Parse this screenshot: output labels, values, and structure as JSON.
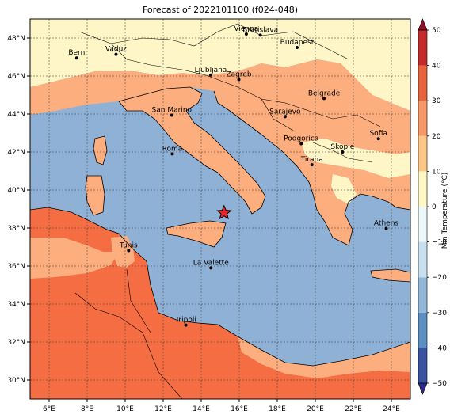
{
  "title": "Forecast of 2022101100 (f024-048)",
  "map": {
    "lon_ticks": [
      "6°E",
      "8°E",
      "10°E",
      "12°E",
      "14°E",
      "16°E",
      "18°E",
      "20°E",
      "22°E",
      "24°E"
    ],
    "lat_ticks": [
      "48°N",
      "46°N",
      "44°N",
      "42°N",
      "40°N",
      "38°N",
      "36°N",
      "34°N",
      "32°N",
      "30°N"
    ],
    "cities": [
      {
        "name": "Bern",
        "lon": 7.45,
        "lat": 46.95
      },
      {
        "name": "Vaduz",
        "lon": 9.52,
        "lat": 47.14
      },
      {
        "name": "Vienna",
        "lon": 16.37,
        "lat": 48.21
      },
      {
        "name": "Bratislava",
        "lon": 17.11,
        "lat": 48.15
      },
      {
        "name": "Budapest",
        "lon": 19.04,
        "lat": 47.5
      },
      {
        "name": "Ljubljana",
        "lon": 14.5,
        "lat": 46.05
      },
      {
        "name": "Zagreb",
        "lon": 15.98,
        "lat": 45.81
      },
      {
        "name": "Belgrade",
        "lon": 20.46,
        "lat": 44.82
      },
      {
        "name": "San Marino",
        "lon": 12.45,
        "lat": 43.94
      },
      {
        "name": "Sarajevo",
        "lon": 18.41,
        "lat": 43.86
      },
      {
        "name": "Sofia",
        "lon": 23.32,
        "lat": 42.7
      },
      {
        "name": "Podgorica",
        "lon": 19.26,
        "lat": 42.44
      },
      {
        "name": "Skopje",
        "lon": 21.43,
        "lat": 42.0
      },
      {
        "name": "Roma",
        "lon": 12.48,
        "lat": 41.9
      },
      {
        "name": "Tirana",
        "lon": 19.82,
        "lat": 41.33
      },
      {
        "name": "Athens",
        "lon": 23.73,
        "lat": 37.98
      },
      {
        "name": "Tunis",
        "lon": 10.18,
        "lat": 36.81
      },
      {
        "name": "La Valette",
        "lon": 14.51,
        "lat": 35.9
      },
      {
        "name": "Tripoli",
        "lon": 13.19,
        "lat": 32.89
      }
    ],
    "marker": {
      "type": "red-star",
      "lon": 15.2,
      "lat": 38.8
    }
  },
  "colorbar": {
    "label": "Min Temperature (°C)",
    "ticks": [
      "50",
      "40",
      "30",
      "20",
      "10",
      "0",
      "−10",
      "−20",
      "−30",
      "−40",
      "−50"
    ],
    "colors": [
      "#2a2a84",
      "#3851a3",
      "#5b8ec2",
      "#91b8d9",
      "#c8e0ef",
      "#edf8fb",
      "#fff7c4",
      "#fdc885",
      "#f89866",
      "#e8623c",
      "#c62a2a",
      "#8c0f27"
    ],
    "legend_colors": {
      "sea": "#8eb1d5",
      "land_10_20": "#fdae7e",
      "land_20_30": "#f46d43",
      "land_0_10": "#fef6c7"
    }
  }
}
